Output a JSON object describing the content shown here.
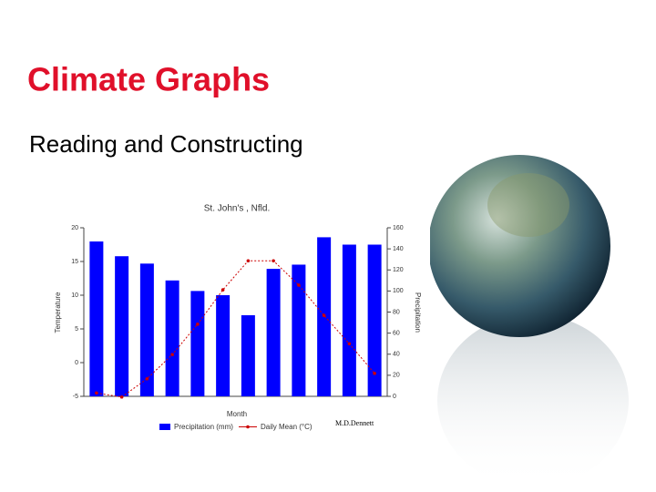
{
  "slide": {
    "title": "Climate Graphs",
    "subtitle": "Reading and Constructing"
  },
  "chart_data": {
    "type": "combo",
    "title": "St. John's , Nfld.",
    "x_label": "Month",
    "y_label": "Temperature",
    "y2_label": "Precipitation",
    "credit": "M.D.Dennett",
    "categories": [
      null,
      null,
      null,
      null,
      null,
      null,
      null,
      null,
      null,
      null,
      null,
      null
    ],
    "ylim": [
      -5,
      20
    ],
    "yticks": [
      -5,
      0,
      5,
      10,
      15,
      20
    ],
    "y2lim": [
      0,
      160
    ],
    "y2ticks": [
      0,
      20,
      40,
      60,
      80,
      100,
      120,
      140,
      160
    ],
    "series": [
      {
        "name": "Precipitation (mm)",
        "type": "bar",
        "axis": "y2",
        "color": "#0000ff",
        "values": [
          147,
          133,
          126,
          110,
          100,
          96,
          77,
          121,
          125,
          151,
          144,
          144
        ]
      },
      {
        "name": "Daily Mean (°C)",
        "type": "line",
        "axis": "y",
        "color": "#cc0000",
        "values": [
          -4.5,
          -5.1,
          -2.4,
          1.2,
          5.7,
          10.8,
          15.1,
          15.1,
          11.5,
          7.0,
          2.8,
          -1.6
        ]
      }
    ]
  }
}
